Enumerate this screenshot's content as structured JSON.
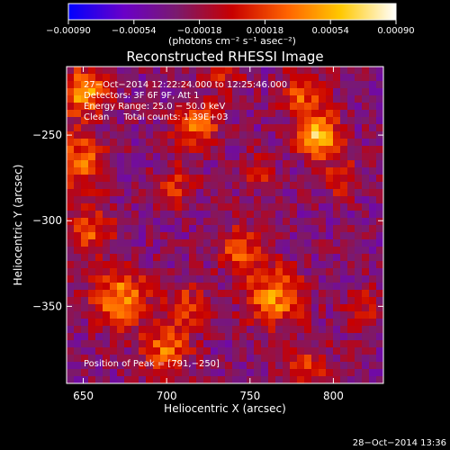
{
  "chart_data": {
    "type": "heatmap",
    "title": "Reconstructed RHESSI Image",
    "xlabel": "Heliocentric X (arcsec)",
    "ylabel": "Heliocentric Y (arcsec)",
    "xlim": [
      640,
      830
    ],
    "ylim": [
      -395,
      -210
    ],
    "x_ticks": [
      {
        "value": 650,
        "label": "650"
      },
      {
        "value": 700,
        "label": "700"
      },
      {
        "value": 750,
        "label": "750"
      },
      {
        "value": 800,
        "label": "800"
      }
    ],
    "y_ticks": [
      {
        "value": -250,
        "label": "−250"
      },
      {
        "value": -300,
        "label": "−300"
      },
      {
        "value": -350,
        "label": "−350"
      }
    ],
    "colorbar": {
      "min": -0.0009,
      "max": 0.0009,
      "ticks": [
        {
          "value": -0.0009,
          "label": "−0.00090"
        },
        {
          "value": -0.00054,
          "label": "−0.00054"
        },
        {
          "value": -0.00018,
          "label": "−0.00018"
        },
        {
          "value": 0.00018,
          "label": "0.00018"
        },
        {
          "value": 0.00054,
          "label": "0.00054"
        },
        {
          "value": 0.0009,
          "label": "0.00090"
        }
      ],
      "units": "(photons cm⁻² s⁻¹ asec⁻²)"
    },
    "annotations": {
      "time_range": "27−Oct−2014 12:22:24.000 to 12:25:46.000",
      "detectors": "Detectors: 3F 6F 9F, Att 1",
      "energy_range": "Energy Range: 25.0 − 50.0 keV",
      "method_counts": "Clean     Total counts: 1.39E+03",
      "peak": "Position of Peak = [791,−250]"
    },
    "timestamp": "28−Oct−2014 13:36",
    "peak_position": [
      791,
      -250
    ],
    "sources": [
      {
        "x": 650,
        "y": -225,
        "amplitude": 0.0008,
        "sigma": 10
      },
      {
        "x": 647,
        "y": -265,
        "amplitude": 0.0006,
        "sigma": 11
      },
      {
        "x": 655,
        "y": -305,
        "amplitude": 0.0005,
        "sigma": 10
      },
      {
        "x": 672,
        "y": -345,
        "amplitude": 0.0007,
        "sigma": 12
      },
      {
        "x": 700,
        "y": -375,
        "amplitude": 0.0006,
        "sigma": 10
      },
      {
        "x": 712,
        "y": -350,
        "amplitude": 0.00045,
        "sigma": 9
      },
      {
        "x": 718,
        "y": -245,
        "amplitude": 0.00055,
        "sigma": 10
      },
      {
        "x": 705,
        "y": -280,
        "amplitude": 0.00035,
        "sigma": 9
      },
      {
        "x": 765,
        "y": -345,
        "amplitude": 0.0007,
        "sigma": 12
      },
      {
        "x": 745,
        "y": -317,
        "amplitude": 0.0005,
        "sigma": 10
      },
      {
        "x": 791,
        "y": -250,
        "amplitude": 0.0009,
        "sigma": 9
      },
      {
        "x": 782,
        "y": -225,
        "amplitude": 0.00055,
        "sigma": 9
      },
      {
        "x": 805,
        "y": -275,
        "amplitude": 0.0004,
        "sigma": 8
      },
      {
        "x": 785,
        "y": -385,
        "amplitude": 0.0004,
        "sigma": 10
      },
      {
        "x": 755,
        "y": -272,
        "amplitude": 0.00035,
        "sigma": 8
      },
      {
        "x": 818,
        "y": -350,
        "amplitude": 0.0003,
        "sigma": 9
      },
      {
        "x": 735,
        "y": -215,
        "amplitude": 0.00035,
        "sigma": 8
      }
    ],
    "colormap": [
      "#0000ff",
      "#6a00c8",
      "#7a1a6e",
      "#c80000",
      "#ff6400",
      "#ffc800",
      "#ffffff"
    ]
  }
}
